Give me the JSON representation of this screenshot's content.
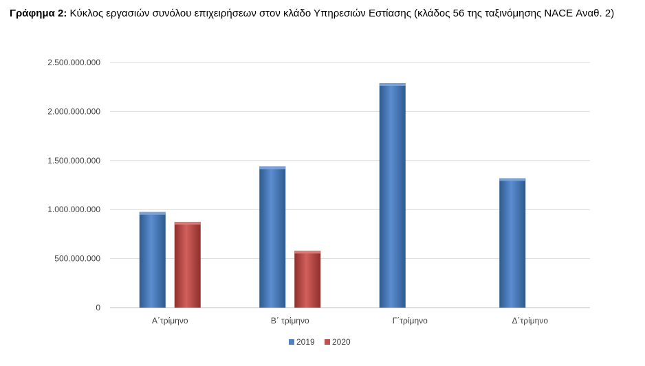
{
  "title": {
    "prefix": "Γράφημα 2:",
    "text": "Κύκλος εργασιών συνόλου επιχειρήσεων στον κλάδο Υπηρεσιών Εστίασης (κλάδος 56 της ταξινόμησης NACE Αναθ. 2)"
  },
  "chart_data": {
    "type": "bar",
    "categories": [
      "Α΄τρίμηνο",
      "Β΄ τρίμηνο",
      "Γ΄τρίμηνο",
      "Δ΄τρίμηνο"
    ],
    "series": [
      {
        "name": "2019",
        "color": "#4F81BD",
        "values": [
          975000000,
          1440000000,
          2290000000,
          1320000000
        ]
      },
      {
        "name": "2020",
        "color": "#C0504D",
        "values": [
          875000000,
          580000000,
          null,
          null
        ]
      }
    ],
    "yticks": [
      "0",
      "500.000.000",
      "1.000.000.000",
      "1.500.000.000",
      "2.000.000.000",
      "2.500.000.000"
    ],
    "ylim": [
      0,
      2500000000
    ],
    "grid": true,
    "legend": "bottom"
  }
}
